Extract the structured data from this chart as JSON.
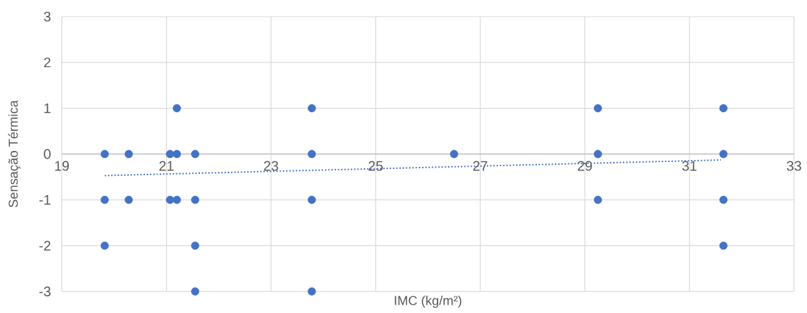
{
  "chart_data": {
    "type": "scatter",
    "xlabel": "IMC (kg/m²)",
    "ylabel": "Sensação Térmica",
    "xlim": [
      19,
      33
    ],
    "ylim": [
      -3,
      3
    ],
    "xticks": [
      19,
      21,
      23,
      25,
      27,
      29,
      31,
      33
    ],
    "yticks": [
      -3,
      -2,
      -1,
      0,
      1,
      2,
      3
    ],
    "grid": true,
    "series": [
      {
        "color": "#4472c4",
        "marker": "circle",
        "x": [
          19.82,
          19.82,
          19.82,
          20.28,
          20.28,
          21.07,
          21.07,
          21.2,
          21.2,
          21.2,
          21.55,
          21.55,
          21.55,
          21.55,
          23.78,
          23.78,
          23.78,
          23.78,
          26.5,
          29.25,
          29.25,
          29.25,
          31.65,
          31.65,
          31.65,
          31.65
        ],
        "values": [
          0,
          -1,
          -2,
          0,
          -1,
          0,
          -1,
          1,
          0,
          -1,
          0,
          -1,
          -2,
          -3,
          1,
          0,
          -1,
          -3,
          0,
          1,
          0,
          -1,
          1,
          0,
          -1,
          -2
        ]
      },
      {
        "type": "line",
        "color": "#4472c4",
        "line_style": "dotted",
        "marker": "none",
        "x": [
          19.82,
          31.6
        ],
        "values": [
          -0.47,
          -0.13
        ]
      }
    ]
  }
}
